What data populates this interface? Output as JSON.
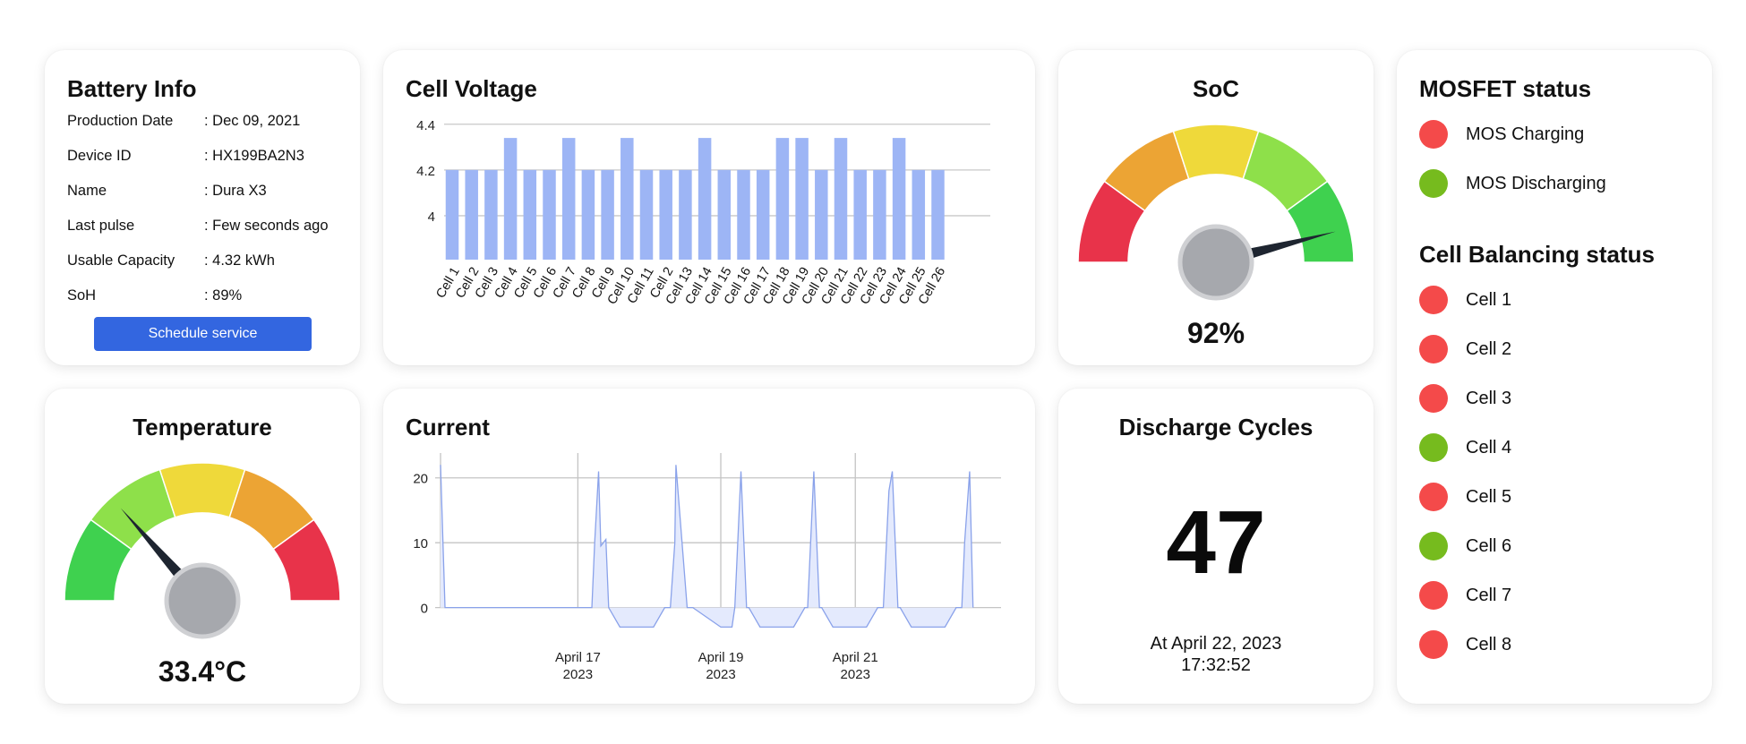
{
  "battery_info": {
    "title": "Battery Info",
    "rows": [
      {
        "label": "Production Date",
        "value": ": Dec 09, 2021"
      },
      {
        "label": "Device ID",
        "value": ": HX199BA2N3"
      },
      {
        "label": "Name",
        "value": ": Dura X3"
      },
      {
        "label": "Last pulse",
        "value": ": Few seconds ago"
      },
      {
        "label": "Usable Capacity",
        "value": ": 4.32 kWh"
      },
      {
        "label": "SoH",
        "value": ": 89%"
      }
    ],
    "schedule_label": "Schedule service"
  },
  "cell_voltage": {
    "title": "Cell Voltage",
    "chart_data": {
      "type": "bar",
      "categories": [
        "Cell 1",
        "Cell 2",
        "Cell 3",
        "Cell 4",
        "Cell 5",
        "Cell 6",
        "Cell 7",
        "Cell 8",
        "Cell 9",
        "Cell 10",
        "Cell 11",
        "Cell 2",
        "Cell 13",
        "Cell 14",
        "Cell 15",
        "Cell 16",
        "Cell 17",
        "Cell 18",
        "Cell 19",
        "Cell 20",
        "Cell 21",
        "Cell 22",
        "Cell 23",
        "Cell 24",
        "Cell 25",
        "Cell 26"
      ],
      "values": [
        4.2,
        4.2,
        4.2,
        4.34,
        4.2,
        4.2,
        4.34,
        4.2,
        4.2,
        4.34,
        4.2,
        4.2,
        4.2,
        4.34,
        4.2,
        4.2,
        4.2,
        4.34,
        4.34,
        4.2,
        4.34,
        4.2,
        4.2,
        4.34,
        4.2,
        4.2
      ],
      "ylim": [
        3.8,
        4.45
      ],
      "yticks": [
        4,
        4.2,
        4.4
      ],
      "ytick_labels": [
        "4",
        "4.2",
        "4.4"
      ],
      "grid": true,
      "bar_color": "#9db5f5"
    }
  },
  "soc": {
    "title": "SoC",
    "value_label": "92%",
    "value": 92,
    "segment_colors": [
      "#e8334a",
      "#eca434",
      "#efd93a",
      "#8ee04a",
      "#3fd14f"
    ]
  },
  "temperature": {
    "title": "Temperature",
    "value_label": "33.4°C",
    "value": 33.4,
    "gauge_fraction": 0.27,
    "segment_colors": [
      "#3fd14f",
      "#8ee04a",
      "#efd93a",
      "#eca434",
      "#e8334a"
    ]
  },
  "current": {
    "title": "Current",
    "chart_data": {
      "type": "area",
      "ylim": [
        -3.5,
        23
      ],
      "yticks": [
        0,
        10,
        20
      ],
      "ytick_labels": [
        "0",
        "10",
        "20"
      ],
      "xlim": [
        0,
        100
      ],
      "x": [
        0,
        0.8,
        1.3,
        25,
        27,
        27.5,
        28.2,
        28.6,
        29.5,
        30,
        32,
        38,
        40,
        41,
        41.8,
        42,
        44,
        45,
        50,
        52,
        52.5,
        53.6,
        54.6,
        55,
        57,
        63,
        65,
        65.5,
        66.6,
        67.6,
        68,
        70,
        76,
        78,
        79,
        80,
        80.6,
        81.6,
        82,
        84,
        90,
        92,
        93,
        93.5,
        94.4,
        95
      ],
      "y": [
        22,
        0,
        0,
        0,
        0,
        10,
        21,
        9.5,
        10.5,
        0,
        -3,
        -3,
        0,
        0,
        10,
        22,
        0,
        0,
        -3,
        -3,
        0,
        21,
        0,
        0,
        -3,
        -3,
        0,
        0,
        21,
        0,
        0,
        -3,
        -3,
        0,
        0,
        18,
        21,
        0,
        0,
        -3,
        -3,
        0,
        0,
        10,
        21,
        0
      ],
      "xtick_positions": [
        24.5,
        50,
        74
      ],
      "xtick_labels": [
        [
          "April 17",
          "2023"
        ],
        [
          "April 19",
          "2023"
        ],
        [
          "April 21",
          "2023"
        ]
      ],
      "grid": true,
      "line_color": "#8aa2ea",
      "fill_color": "#e4eafd"
    }
  },
  "discharge_cycles": {
    "title": "Discharge Cycles",
    "count": "47",
    "at_line1": "At April 22, 2023",
    "at_line2": "17:32:52"
  },
  "mosfet": {
    "title": "MOSFET status",
    "items": [
      {
        "label": "MOS Charging",
        "color": "#f44a4a"
      },
      {
        "label": "MOS Discharging",
        "color": "#76bb1e"
      }
    ]
  },
  "cell_balancing": {
    "title": "Cell Balancing status",
    "items": [
      {
        "label": "Cell 1",
        "color": "#f44a4a"
      },
      {
        "label": "Cell 2",
        "color": "#f44a4a"
      },
      {
        "label": "Cell 3",
        "color": "#f44a4a"
      },
      {
        "label": "Cell 4",
        "color": "#76bb1e"
      },
      {
        "label": "Cell 5",
        "color": "#f44a4a"
      },
      {
        "label": "Cell 6",
        "color": "#76bb1e"
      },
      {
        "label": "Cell 7",
        "color": "#f44a4a"
      },
      {
        "label": "Cell 8",
        "color": "#f44a4a"
      }
    ]
  }
}
